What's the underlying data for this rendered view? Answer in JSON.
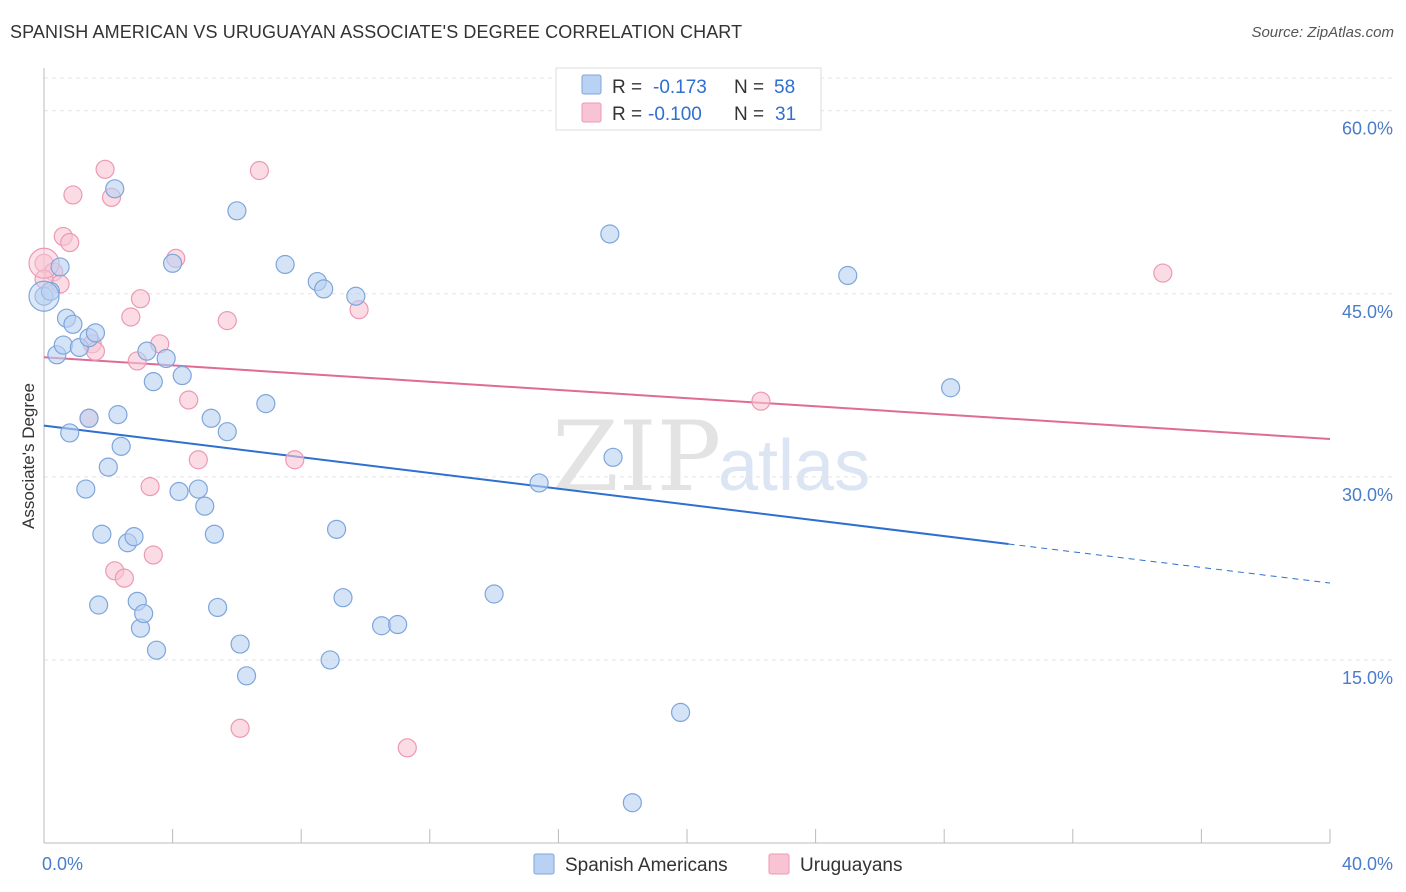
{
  "title": "SPANISH AMERICAN VS URUGUAYAN ASSOCIATE'S DEGREE CORRELATION CHART",
  "source": "Source: ZipAtlas.com",
  "watermark": {
    "zip": "ZIP",
    "atlas": "atlas"
  },
  "colors": {
    "blue_fill": "#b9d1f2",
    "blue_stroke": "#7ea6dc",
    "blue_line": "#2e6fd0",
    "pink_fill": "#f8c4d4",
    "pink_stroke": "#ec99b4",
    "pink_line": "#e06b95",
    "grid": "#e4e4e4",
    "axis_text": "#4a7cc9"
  },
  "legend": {
    "rows": [
      {
        "r_label": "R =",
        "r_value": "-0.173",
        "n_label": "N =",
        "n_value": "58"
      },
      {
        "r_label": "R =",
        "r_value": "-0.100",
        "n_label": "N =",
        "n_value": "31"
      }
    ]
  },
  "bottom_legend": [
    "Spanish Americans",
    "Uruguayans"
  ],
  "chart_data": {
    "type": "scatter",
    "title": "SPANISH AMERICAN VS URUGUAYAN ASSOCIATE'S DEGREE CORRELATION CHART",
    "xlabel": "",
    "ylabel": "Associate's Degree",
    "xlim": [
      0,
      40
    ],
    "ylim": [
      0,
      63.5
    ],
    "x_tick_labels": [
      "0.0%",
      "40.0%"
    ],
    "y_ticks": [
      15,
      30,
      45,
      60
    ],
    "y_tick_labels": [
      "15.0%",
      "30.0%",
      "45.0%",
      "60.0%"
    ],
    "legend_position": "top-center",
    "series": [
      {
        "name": "Spanish Americans",
        "r": -0.173,
        "n": 58,
        "trend": {
          "x0": 0,
          "y0": 34.2,
          "x1": 30,
          "y1": 24.5,
          "dashed_to": 40,
          "dashed_y": 21.3
        },
        "points": [
          [
            0.0,
            44.8
          ],
          [
            0.2,
            45.2
          ],
          [
            0.5,
            47.2
          ],
          [
            0.4,
            40.0
          ],
          [
            0.6,
            40.8
          ],
          [
            0.7,
            43.0
          ],
          [
            0.9,
            42.5
          ],
          [
            0.8,
            33.6
          ],
          [
            1.1,
            40.6
          ],
          [
            1.4,
            41.4
          ],
          [
            1.6,
            41.8
          ],
          [
            1.3,
            29.0
          ],
          [
            1.4,
            34.8
          ],
          [
            2.2,
            53.6
          ],
          [
            2.3,
            35.1
          ],
          [
            2.4,
            32.5
          ],
          [
            2.0,
            30.8
          ],
          [
            1.8,
            25.3
          ],
          [
            1.7,
            19.5
          ],
          [
            2.6,
            24.6
          ],
          [
            2.8,
            25.1
          ],
          [
            2.9,
            19.8
          ],
          [
            3.0,
            17.6
          ],
          [
            3.1,
            18.8
          ],
          [
            3.2,
            40.3
          ],
          [
            3.4,
            37.8
          ],
          [
            3.5,
            15.8
          ],
          [
            3.8,
            39.7
          ],
          [
            4.0,
            47.5
          ],
          [
            4.2,
            28.8
          ],
          [
            4.3,
            38.3
          ],
          [
            4.8,
            29.0
          ],
          [
            5.0,
            27.6
          ],
          [
            5.2,
            34.8
          ],
          [
            5.3,
            25.3
          ],
          [
            5.4,
            19.3
          ],
          [
            5.7,
            33.7
          ],
          [
            6.0,
            51.8
          ],
          [
            6.1,
            16.3
          ],
          [
            6.3,
            13.7
          ],
          [
            6.9,
            36.0
          ],
          [
            7.5,
            47.4
          ],
          [
            8.5,
            46.0
          ],
          [
            8.7,
            45.4
          ],
          [
            8.9,
            15.0
          ],
          [
            9.1,
            25.7
          ],
          [
            9.3,
            20.1
          ],
          [
            9.7,
            44.8
          ],
          [
            10.5,
            17.8
          ],
          [
            11.0,
            17.9
          ],
          [
            14.0,
            20.4
          ],
          [
            15.4,
            29.5
          ],
          [
            17.6,
            49.9
          ],
          [
            17.7,
            31.6
          ],
          [
            18.3,
            3.3
          ],
          [
            19.8,
            10.7
          ],
          [
            25.0,
            46.5
          ],
          [
            28.2,
            37.3
          ]
        ]
      },
      {
        "name": "Uruguayans",
        "r": -0.1,
        "n": 31,
        "trend": {
          "x0": 0,
          "y0": 39.8,
          "x1": 40,
          "y1": 33.1
        },
        "points": [
          [
            0.0,
            47.5
          ],
          [
            0.3,
            46.8
          ],
          [
            0.5,
            45.8
          ],
          [
            0.6,
            49.7
          ],
          [
            0.8,
            49.2
          ],
          [
            0.9,
            53.1
          ],
          [
            1.5,
            40.9
          ],
          [
            1.6,
            40.3
          ],
          [
            1.4,
            34.8
          ],
          [
            1.9,
            55.2
          ],
          [
            2.1,
            52.9
          ],
          [
            2.2,
            22.3
          ],
          [
            2.5,
            21.7
          ],
          [
            2.7,
            43.1
          ],
          [
            2.9,
            39.5
          ],
          [
            3.0,
            44.6
          ],
          [
            3.3,
            29.2
          ],
          [
            3.4,
            23.6
          ],
          [
            3.6,
            40.9
          ],
          [
            4.1,
            47.9
          ],
          [
            4.5,
            36.3
          ],
          [
            4.8,
            31.4
          ],
          [
            5.7,
            42.8
          ],
          [
            6.1,
            9.4
          ],
          [
            6.7,
            55.1
          ],
          [
            7.8,
            31.4
          ],
          [
            9.8,
            43.7
          ],
          [
            11.3,
            7.8
          ],
          [
            22.3,
            36.2
          ],
          [
            34.8,
            46.7
          ],
          [
            0.0,
            46.2
          ]
        ]
      }
    ]
  }
}
